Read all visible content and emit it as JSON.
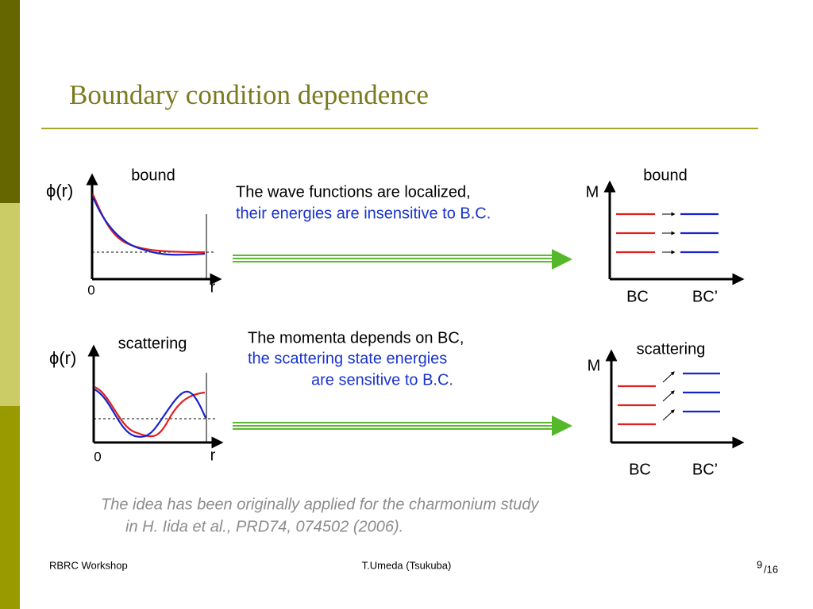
{
  "title": "Boundary condition dependence",
  "panels": [
    {
      "wave": {
        "label": "bound",
        "yaxis": "ϕ(r)",
        "origin": "0",
        "xaxis": "r"
      },
      "text": [
        "The wave functions are localized,",
        "their energies are insensitive to B.C."
      ],
      "mass": {
        "label": "bound",
        "yaxis": "M",
        "left": "BC",
        "right": "BC’"
      }
    },
    {
      "wave": {
        "label": "scattering",
        "yaxis": "ϕ(r)",
        "origin": "0",
        "xaxis": "r"
      },
      "text": [
        "The momenta depends on BC,",
        "the scattering state energies",
        "are sensitive to B.C."
      ],
      "mass": {
        "label": "scattering",
        "yaxis": "M",
        "left": "BC",
        "right": "BC’"
      }
    }
  ],
  "note": [
    "The idea has been originally applied for the charmonium study",
    "in  H. Iida et al., PRD74, 074502 (2006)."
  ],
  "footer": {
    "left": "RBRC Workshop",
    "center": "T.Umeda (Tsukuba)",
    "page": "9",
    "total": "/16"
  }
}
